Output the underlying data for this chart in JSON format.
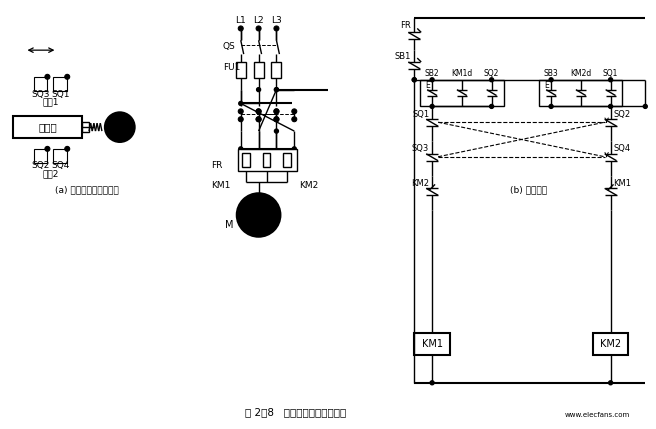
{
  "bg_color": "#ffffff",
  "title": "图 2－8   自动循环往复控制线路",
  "subtitle_a": "(a) 工作自动循环示意图",
  "subtitle_b": "(b) 控制线路",
  "fig_width": 6.56,
  "fig_height": 4.29,
  "dpi": 100,
  "lw": 1.0,
  "lw_thick": 1.5
}
